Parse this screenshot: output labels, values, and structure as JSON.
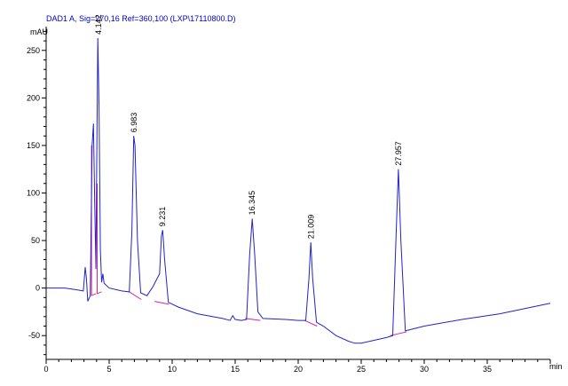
{
  "chart_data": {
    "type": "line",
    "title": "DAD1 A, Sig=270,16 Ref=360,100 (LXP\\17110800.D)",
    "xlabel": "min",
    "ylabel": "mAU",
    "xlim": [
      0,
      40
    ],
    "ylim": [
      -75,
      275
    ],
    "x_ticks": [
      {
        "v": 0,
        "label": "0"
      },
      {
        "v": 5,
        "label": "5"
      },
      {
        "v": 10,
        "label": "10"
      },
      {
        "v": 15,
        "label": "15"
      },
      {
        "v": 20,
        "label": "20"
      },
      {
        "v": 25,
        "label": "25"
      },
      {
        "v": 30,
        "label": "30"
      },
      {
        "v": 35,
        "label": "35"
      }
    ],
    "y_ticks": [
      {
        "v": -50,
        "label": "-50"
      },
      {
        "v": 0,
        "label": "0"
      },
      {
        "v": 50,
        "label": "50"
      },
      {
        "v": 100,
        "label": "100"
      },
      {
        "v": 150,
        "label": "150"
      },
      {
        "v": 200,
        "label": "200"
      },
      {
        "v": 250,
        "label": "250"
      }
    ],
    "grid": false,
    "colors": {
      "trace": "#2222cc",
      "baseline": "#e0209a",
      "axis": "#000000",
      "title": "#0000cc"
    },
    "trace": [
      [
        0.0,
        0
      ],
      [
        1.5,
        0
      ],
      [
        2.5,
        -2
      ],
      [
        2.95,
        -3
      ],
      [
        3.1,
        22
      ],
      [
        3.2,
        10
      ],
      [
        3.3,
        -14
      ],
      [
        3.5,
        -8
      ],
      [
        3.65,
        150
      ],
      [
        3.75,
        173
      ],
      [
        3.85,
        90
      ],
      [
        3.95,
        20
      ],
      [
        4.0,
        110
      ],
      [
        4.1,
        263
      ],
      [
        4.2,
        190
      ],
      [
        4.3,
        40
      ],
      [
        4.4,
        6
      ],
      [
        4.5,
        15
      ],
      [
        4.6,
        5
      ],
      [
        5.0,
        0
      ],
      [
        6.0,
        -3
      ],
      [
        6.6,
        -4
      ],
      [
        6.8,
        60
      ],
      [
        6.95,
        160
      ],
      [
        7.05,
        150
      ],
      [
        7.25,
        50
      ],
      [
        7.5,
        -5
      ],
      [
        8.0,
        -8
      ],
      [
        8.5,
        2
      ],
      [
        8.8,
        10
      ],
      [
        9.0,
        15
      ],
      [
        9.15,
        55
      ],
      [
        9.25,
        61
      ],
      [
        9.4,
        30
      ],
      [
        9.7,
        -15
      ],
      [
        10.5,
        -20
      ],
      [
        12.0,
        -27
      ],
      [
        14.0,
        -32
      ],
      [
        14.6,
        -34
      ],
      [
        14.8,
        -29
      ],
      [
        15.0,
        -33
      ],
      [
        15.5,
        -34
      ],
      [
        15.9,
        -33
      ],
      [
        16.15,
        35
      ],
      [
        16.35,
        73
      ],
      [
        16.55,
        35
      ],
      [
        16.8,
        -25
      ],
      [
        17.2,
        -32
      ],
      [
        19.0,
        -33
      ],
      [
        20.0,
        -34
      ],
      [
        20.6,
        -34
      ],
      [
        20.85,
        10
      ],
      [
        21.0,
        48
      ],
      [
        21.15,
        10
      ],
      [
        21.45,
        -36
      ],
      [
        22.0,
        -40
      ],
      [
        23.0,
        -50
      ],
      [
        24.0,
        -56
      ],
      [
        24.5,
        -58
      ],
      [
        25.0,
        -58
      ],
      [
        27.0,
        -52
      ],
      [
        27.5,
        -50
      ],
      [
        27.75,
        50
      ],
      [
        27.95,
        125
      ],
      [
        28.15,
        50
      ],
      [
        28.5,
        -45
      ],
      [
        30.0,
        -40
      ],
      [
        33.0,
        -33
      ],
      [
        36.0,
        -27
      ],
      [
        40.0,
        -16
      ]
    ],
    "baselines": [
      [
        [
          3.55,
          -8
        ],
        [
          3.95,
          -6
        ]
      ],
      [
        [
          4.0,
          -6
        ],
        [
          4.4,
          -4
        ]
      ],
      [
        [
          6.6,
          -4
        ],
        [
          7.55,
          -12
        ]
      ],
      [
        [
          8.6,
          -14
        ],
        [
          9.75,
          -17
        ]
      ],
      [
        [
          15.8,
          -32
        ],
        [
          17.0,
          -34
        ]
      ],
      [
        [
          20.5,
          -34
        ],
        [
          21.5,
          -40
        ]
      ],
      [
        [
          27.3,
          -50
        ],
        [
          28.6,
          -46
        ]
      ]
    ],
    "peaks": [
      {
        "rt": 4.142,
        "label": "4.142",
        "height": 263
      },
      {
        "rt": 6.983,
        "label": "6.983",
        "height": 160
      },
      {
        "rt": 9.231,
        "label": "9.231",
        "height": 61
      },
      {
        "rt": 16.345,
        "label": "16.345",
        "height": 73
      },
      {
        "rt": 21.009,
        "label": "21.009",
        "height": 48
      },
      {
        "rt": 27.957,
        "label": "27.957",
        "height": 125
      }
    ]
  }
}
